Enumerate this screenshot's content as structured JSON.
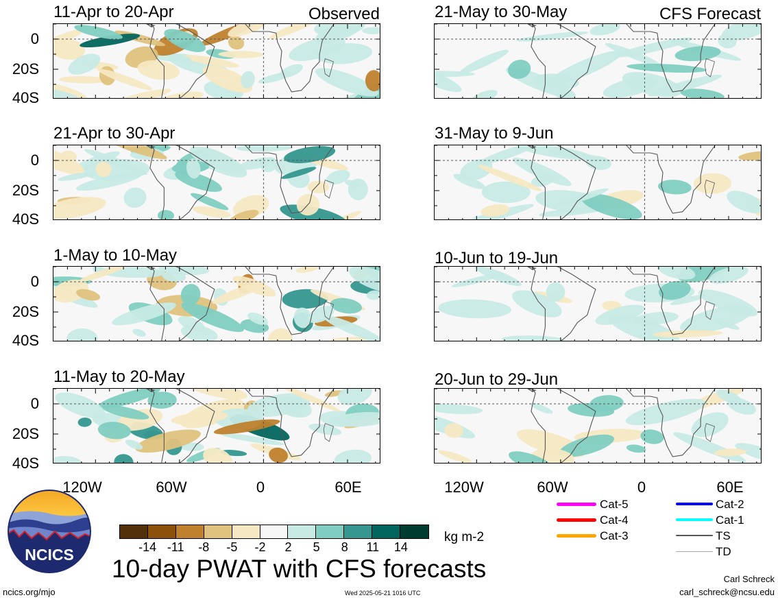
{
  "observed_label": "Observed",
  "forecast_label": "CFS Forecast",
  "panels_left": [
    {
      "title": "11-Apr to 20-Apr"
    },
    {
      "title": "21-Apr to 30-Apr"
    },
    {
      "title": "1-May to 10-May"
    },
    {
      "title": "11-May to 20-May"
    }
  ],
  "panels_right": [
    {
      "title": "21-May to 30-May"
    },
    {
      "title": "31-May to 9-Jun"
    },
    {
      "title": "10-Jun to 19-Jun"
    },
    {
      "title": "20-Jun to 29-Jun"
    }
  ],
  "y_ticks": [
    "0",
    "20S",
    "40S"
  ],
  "x_ticks": [
    "120W",
    "60W",
    "0",
    "60E"
  ],
  "colorbar": {
    "colors": [
      "#54300a",
      "#8c510a",
      "#bf812d",
      "#dfc27d",
      "#f6e8c3",
      "#f7f7f7",
      "#c7eae5",
      "#80cdc1",
      "#35978f",
      "#01665e",
      "#003c30"
    ],
    "labels": [
      "-14",
      "-11",
      "-8",
      "-5",
      "-2",
      "2",
      "5",
      "8",
      "11",
      "14"
    ],
    "units": "kg m-2"
  },
  "main_title": "10-day PWAT with CFS forecasts",
  "logo_text": "NCICS",
  "legend": [
    {
      "label": "Cat-5",
      "color": "#ff00ff"
    },
    {
      "label": "Cat-4",
      "color": "#ff0000"
    },
    {
      "label": "Cat-3",
      "color": "#ffa500"
    },
    {
      "label": "Cat-2",
      "color": "#0000ff"
    },
    {
      "label": "Cat-1",
      "color": "#00ffff"
    },
    {
      "label": "TS",
      "color": "#555555"
    },
    {
      "label": "TD",
      "color": "#aaaaaa"
    }
  ],
  "footer": {
    "url": "ncics.org/mjo",
    "timestamp": "Wed 2025-05-21 1016 UTC",
    "author": "Carl Schreck",
    "email": "carl_schreck@ncsu.edu"
  }
}
